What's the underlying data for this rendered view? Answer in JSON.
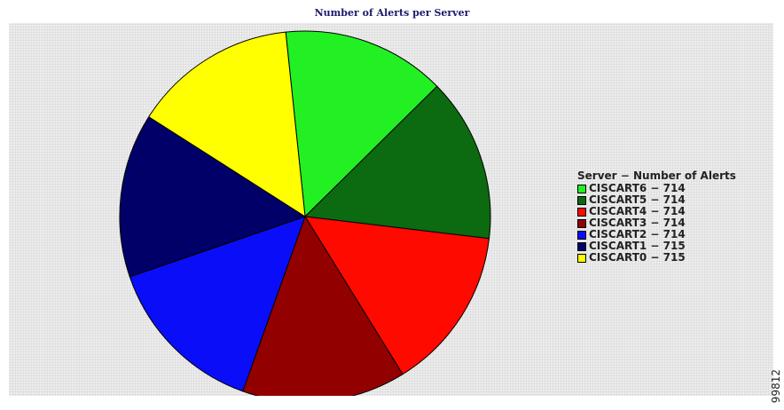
{
  "chart_data": {
    "type": "pie",
    "title": "Number of Alerts per Server",
    "legend_title": "Server − Number of Alerts",
    "legend_position": "right",
    "slices": [
      {
        "label": "CISCART6",
        "value": 714,
        "color": "#22f022"
      },
      {
        "label": "CISCART5",
        "value": 714,
        "color": "#0c6a10"
      },
      {
        "label": "CISCART4",
        "value": 714,
        "color": "#fe0a00"
      },
      {
        "label": "CISCART3",
        "value": 714,
        "color": "#920000"
      },
      {
        "label": "CISCART2",
        "value": 714,
        "color": "#0a0ef8"
      },
      {
        "label": "CISCART1",
        "value": 715,
        "color": "#000068"
      },
      {
        "label": "CISCART0",
        "value": 715,
        "color": "#ffff00"
      }
    ]
  },
  "figure_number": "99812"
}
